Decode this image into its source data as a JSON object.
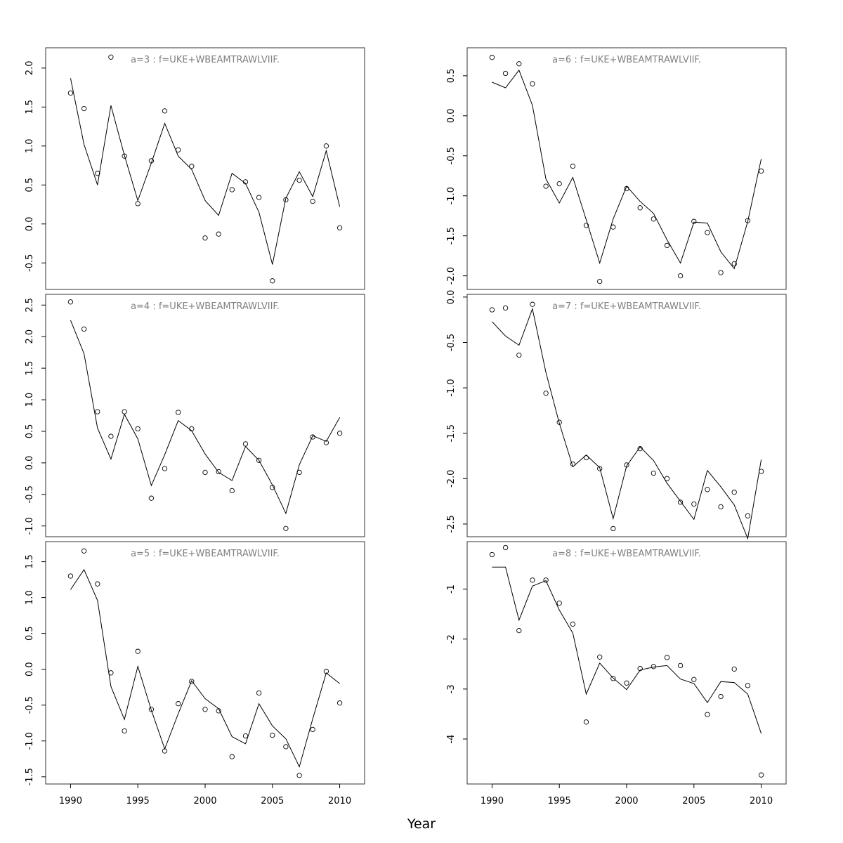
{
  "figure": {
    "xlabel": "Year",
    "x_tick_labels": [
      "1990",
      "1995",
      "2000",
      "2005",
      "2010"
    ]
  },
  "colors": {
    "title": "#808080",
    "line": "#000000",
    "points": "#000000",
    "frame": "#333333"
  },
  "chart_data": [
    {
      "type": "line",
      "title": "a=3  :  f=UKE+WBEAMTRAWLVIIF.",
      "x": [
        1990,
        1991,
        1992,
        1993,
        1994,
        1995,
        1996,
        1997,
        1998,
        1999,
        2000,
        2001,
        2002,
        2003,
        2004,
        2005,
        2006,
        2007,
        2008,
        2009,
        2010
      ],
      "fitted": [
        1.87,
        1.02,
        0.5,
        1.52,
        0.88,
        0.3,
        0.78,
        1.29,
        0.87,
        0.7,
        0.3,
        0.11,
        0.65,
        0.52,
        0.15,
        -0.52,
        0.33,
        0.67,
        0.35,
        0.94,
        0.22
      ],
      "observed": [
        1.68,
        1.48,
        0.65,
        2.14,
        0.87,
        0.26,
        0.81,
        1.45,
        0.95,
        0.74,
        -0.18,
        -0.13,
        0.44,
        0.54,
        0.34,
        -0.73,
        0.31,
        0.56,
        0.29,
        1.0,
        -0.05
      ],
      "ylim": [
        -0.84,
        2.26
      ],
      "y_ticks": [
        -0.5,
        0.0,
        0.5,
        1.0,
        1.5,
        2.0
      ],
      "y_tick_labels": [
        "-0.5",
        "0.0",
        "0.5",
        "1.0",
        "1.5",
        "2.0"
      ]
    },
    {
      "type": "line",
      "title": "a=4  :  f=UKE+WBEAMTRAWLVIIF.",
      "x": [
        1990,
        1991,
        1992,
        1993,
        1994,
        1995,
        1996,
        1997,
        1998,
        1999,
        2000,
        2001,
        2002,
        2003,
        2004,
        2005,
        2006,
        2007,
        2008,
        2009,
        2010
      ],
      "fitted": [
        2.26,
        1.73,
        0.55,
        0.06,
        0.77,
        0.38,
        -0.36,
        0.13,
        0.67,
        0.51,
        0.14,
        -0.15,
        -0.28,
        0.26,
        0.04,
        -0.35,
        -0.8,
        -0.03,
        0.43,
        0.34,
        0.72
      ],
      "observed": [
        2.55,
        2.12,
        0.81,
        0.42,
        0.81,
        0.54,
        -0.56,
        -0.09,
        0.8,
        0.54,
        -0.15,
        -0.14,
        -0.44,
        0.3,
        0.04,
        -0.39,
        -1.04,
        -0.15,
        0.41,
        0.32,
        0.47
      ],
      "ylim": [
        -1.17,
        2.67
      ],
      "y_ticks": [
        -1.0,
        -0.5,
        0.0,
        0.5,
        1.0,
        1.5,
        2.0,
        2.5
      ],
      "y_tick_labels": [
        "-1.0",
        "-0.5",
        "0.0",
        "0.5",
        "1.0",
        "1.5",
        "2.0",
        "2.5"
      ]
    },
    {
      "type": "line",
      "title": "a=5  :  f=UKE+WBEAMTRAWLVIIF.",
      "x": [
        1990,
        1991,
        1992,
        1993,
        1994,
        1995,
        1996,
        1997,
        1998,
        1999,
        2000,
        2001,
        2002,
        2003,
        2004,
        2005,
        2006,
        2007,
        2008,
        2009,
        2010
      ],
      "fitted": [
        1.11,
        1.39,
        0.96,
        -0.24,
        -0.7,
        0.04,
        -0.57,
        -1.11,
        -0.62,
        -0.16,
        -0.41,
        -0.55,
        -0.94,
        -1.04,
        -0.48,
        -0.79,
        -0.97,
        -1.36,
        -0.69,
        -0.05,
        -0.2
      ],
      "observed": [
        1.3,
        1.65,
        1.19,
        -0.05,
        -0.86,
        0.25,
        -0.56,
        -1.14,
        -0.48,
        -0.17,
        -0.56,
        -0.58,
        -1.22,
        -0.93,
        -0.33,
        -0.92,
        -1.08,
        -1.48,
        -0.84,
        -0.03,
        -0.47
      ],
      "ylim": [
        -1.6,
        1.78
      ],
      "y_ticks": [
        -1.5,
        -1.0,
        -0.5,
        0.0,
        0.5,
        1.0,
        1.5
      ],
      "y_tick_labels": [
        "-1.5",
        "-1.0",
        "-0.5",
        "0.0",
        "0.5",
        "1.0",
        "1.5"
      ]
    },
    {
      "type": "line",
      "title": "a=6  :  f=UKE+WBEAMTRAWLVIIF.",
      "x": [
        1990,
        1991,
        1992,
        1993,
        1994,
        1995,
        1996,
        1997,
        1998,
        1999,
        2000,
        2001,
        2002,
        2003,
        2004,
        2005,
        2006,
        2007,
        2008,
        2009,
        2010
      ],
      "fitted": [
        0.42,
        0.35,
        0.57,
        0.13,
        -0.79,
        -1.09,
        -0.77,
        -1.3,
        -1.84,
        -1.29,
        -0.88,
        -1.07,
        -1.22,
        -1.55,
        -1.84,
        -1.33,
        -1.34,
        -1.7,
        -1.91,
        -1.32,
        -0.54
      ],
      "observed": [
        0.73,
        0.53,
        0.65,
        0.4,
        -0.88,
        -0.85,
        -0.63,
        -1.37,
        -2.07,
        -1.39,
        -0.91,
        -1.15,
        -1.29,
        -1.62,
        -2.0,
        -1.32,
        -1.46,
        -1.96,
        -1.85,
        -1.31,
        -0.69
      ],
      "ylim": [
        -2.17,
        0.85
      ],
      "y_ticks": [
        -2.0,
        -1.5,
        -1.0,
        -0.5,
        0.0,
        0.5
      ],
      "y_tick_labels": [
        "-2.0",
        "-1.5",
        "-1.0",
        "-0.5",
        "0.0",
        "0.5"
      ]
    },
    {
      "type": "line",
      "title": "a=7  :  f=UKE+WBEAMTRAWLVIIF.",
      "x": [
        1990,
        1991,
        1992,
        1993,
        1994,
        1995,
        1996,
        1997,
        1998,
        1999,
        2000,
        2001,
        2002,
        2003,
        2004,
        2005,
        2006,
        2007,
        2008,
        2009,
        2010
      ],
      "fitted": [
        -0.27,
        -0.43,
        -0.53,
        -0.13,
        -0.83,
        -1.39,
        -1.87,
        -1.74,
        -1.88,
        -2.44,
        -1.86,
        -1.65,
        -1.8,
        -2.05,
        -2.25,
        -2.45,
        -1.91,
        -2.09,
        -2.29,
        -2.66,
        -1.79
      ],
      "observed": [
        -0.14,
        -0.12,
        -0.64,
        -0.08,
        -1.06,
        -1.38,
        -1.84,
        -1.77,
        -1.89,
        -2.55,
        -1.85,
        -1.67,
        -1.94,
        -2.0,
        -2.26,
        -2.28,
        -2.12,
        -2.31,
        -2.15,
        -2.41,
        -1.92
      ],
      "ylim": [
        -2.64,
        0.03
      ],
      "y_ticks": [
        -2.5,
        -2.0,
        -1.5,
        -1.0,
        -0.5,
        0.0
      ],
      "y_tick_labels": [
        "-2.5",
        "-2.0",
        "-1.5",
        "-1.0",
        "-0.5",
        "0.0"
      ]
    },
    {
      "type": "line",
      "title": "a=8  :  f=UKE+WBEAMTRAWLVIIF.",
      "x": [
        1990,
        1991,
        1992,
        1993,
        1994,
        1995,
        1996,
        1997,
        1998,
        1999,
        2000,
        2001,
        2002,
        2003,
        2004,
        2005,
        2006,
        2007,
        2008,
        2009,
        2010
      ],
      "fitted": [
        -0.56,
        -0.56,
        -1.62,
        -0.94,
        -0.83,
        -1.42,
        -1.88,
        -3.1,
        -2.48,
        -2.78,
        -3.01,
        -2.62,
        -2.56,
        -2.53,
        -2.8,
        -2.89,
        -3.27,
        -2.85,
        -2.87,
        -3.1,
        -3.89
      ],
      "observed": [
        -0.31,
        -0.17,
        -1.83,
        -0.82,
        -0.82,
        -1.28,
        -1.7,
        -3.66,
        -2.36,
        -2.79,
        -2.88,
        -2.59,
        -2.55,
        -2.37,
        -2.53,
        -2.81,
        -3.51,
        -3.15,
        -2.6,
        -2.93,
        -4.72
      ],
      "ylim": [
        -4.9,
        -0.05
      ],
      "y_ticks": [
        -4,
        -3,
        -2,
        -1
      ],
      "y_tick_labels": [
        "-4",
        "-3",
        "-2",
        "-1"
      ]
    }
  ]
}
